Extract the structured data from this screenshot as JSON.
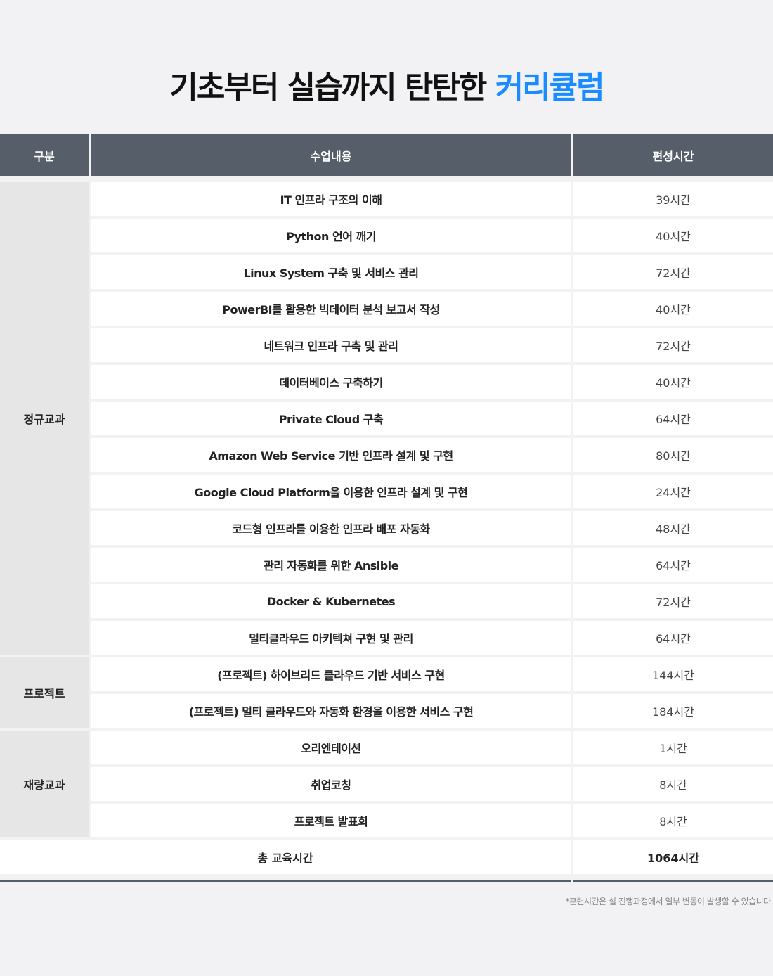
{
  "title": {
    "main": "기초부터 실습까지 탄탄한 ",
    "accent": "커리큘럼",
    "accent_color": "#1a8cff"
  },
  "header": {
    "category": "구분",
    "content": "수업내용",
    "hours": "편성시간"
  },
  "groups": [
    {
      "category": "정규교과",
      "rows": [
        {
          "course": "IT 인프라 구조의 이해",
          "hours": "39시간"
        },
        {
          "course": "Python 언어 깨기",
          "hours": "40시간"
        },
        {
          "course": "Linux System 구축 및 서비스 관리",
          "hours": "72시간"
        },
        {
          "course": "PowerBI를 활용한 빅데이터 분석 보고서 작성",
          "hours": "40시간"
        },
        {
          "course": "네트워크 인프라 구축 및 관리",
          "hours": "72시간"
        },
        {
          "course": "데이터베이스 구축하기",
          "hours": "40시간"
        },
        {
          "course": "Private Cloud 구축",
          "hours": "64시간"
        },
        {
          "course": "Amazon Web Service 기반 인프라 설계 및 구현",
          "hours": "80시간"
        },
        {
          "course": "Google Cloud Platform을 이용한 인프라 설계 및 구현",
          "hours": "24시간"
        },
        {
          "course": "코드형 인프라를 이용한 인프라 배포 자동화",
          "hours": "48시간"
        },
        {
          "course": "관리 자동화를 위한 Ansible",
          "hours": "64시간"
        },
        {
          "course": "Docker & Kubernetes",
          "hours": "72시간"
        },
        {
          "course": "멀티클라우드 아키텍쳐 구현 및 관리",
          "hours": "64시간"
        }
      ]
    },
    {
      "category": "프로젝트",
      "rows": [
        {
          "course": "(프로젝트) 하이브리드 클라우드 기반 서비스 구현",
          "hours": "144시간"
        },
        {
          "course": "(프로젝트) 멀티 클라우드와 자동화 환경을 이용한 서비스 구현",
          "hours": "184시간"
        }
      ]
    },
    {
      "category": "재량교과",
      "rows": [
        {
          "course": "오리엔테이션",
          "hours": "1시간"
        },
        {
          "course": "취업코칭",
          "hours": "8시간"
        },
        {
          "course": "프로젝트 발표회",
          "hours": "8시간"
        }
      ]
    }
  ],
  "total": {
    "label": "총 교육시간",
    "hours": "1064시간"
  },
  "note": "*훈련시간은 실 진행과정에서 일부 변동이 발생할 수 있습니다."
}
